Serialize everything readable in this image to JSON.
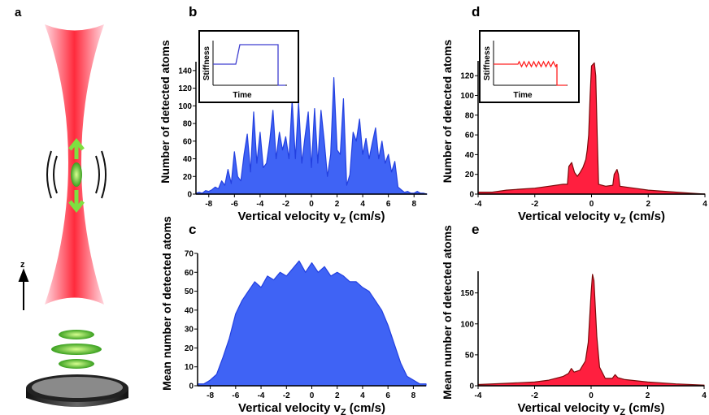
{
  "panel_labels": {
    "a": "a",
    "b": "b",
    "c": "c",
    "d": "d",
    "e": "e"
  },
  "illustration": {
    "axis_label": "z",
    "colors": {
      "beam": "#ff3040",
      "atom": "#7ee040",
      "arrow": "#7ee040",
      "dish": "#333333"
    }
  },
  "chart_data": [
    {
      "id": "b",
      "type": "area",
      "color": "#3f63f5",
      "edge": "#2340e0",
      "xlabel": "Vertical velocity v",
      "xlabel_sub": "Z",
      "xlabel_unit": " (cm/s)",
      "ylabel": "Number of detected atoms",
      "xlim": [
        -9,
        9
      ],
      "ylim": [
        0,
        150
      ],
      "xticks": [
        -8,
        -6,
        -4,
        -2,
        0,
        2,
        4,
        6,
        8
      ],
      "yticks": [
        0,
        20,
        40,
        60,
        80,
        100,
        120,
        140
      ],
      "x_start": -9,
      "x_step": 0.25,
      "values": [
        1,
        2,
        1,
        4,
        3,
        5,
        8,
        6,
        15,
        10,
        28,
        12,
        48,
        20,
        15,
        45,
        68,
        25,
        93,
        35,
        70,
        30,
        35,
        60,
        95,
        40,
        70,
        50,
        65,
        40,
        106,
        40,
        104,
        35,
        65,
        93,
        30,
        97,
        35,
        95,
        60,
        20,
        45,
        132,
        50,
        45,
        108,
        10,
        22,
        70,
        60,
        85,
        45,
        63,
        40,
        58,
        75,
        40,
        60,
        35,
        45,
        25,
        37,
        8,
        5,
        2,
        3,
        1,
        1,
        3,
        1,
        1,
        0
      ],
      "inset": {
        "ylabel": "Stiffness",
        "xlabel": "Time",
        "shape": "step-up-then-off",
        "color": "#3f3fd0"
      }
    },
    {
      "id": "c",
      "type": "area",
      "color": "#3f63f5",
      "edge": "#2340e0",
      "xlabel": "Vertical velocity v",
      "xlabel_sub": "Z",
      "xlabel_unit": " (cm/s)",
      "ylabel": "Mean number of detected atoms",
      "xlim": [
        -9,
        9
      ],
      "ylim": [
        0,
        70
      ],
      "xticks": [
        -8,
        -6,
        -4,
        -2,
        0,
        2,
        4,
        6,
        8
      ],
      "yticks": [
        0,
        10,
        20,
        30,
        40,
        50,
        60,
        70
      ],
      "x_start": -9,
      "x_step": 0.5,
      "values": [
        1,
        1,
        3,
        6,
        15,
        25,
        38,
        45,
        50,
        55,
        52,
        58,
        56,
        60,
        58,
        62,
        66,
        60,
        65,
        60,
        63,
        58,
        60,
        58,
        55,
        55,
        52,
        50,
        45,
        40,
        32,
        22,
        12,
        5,
        3,
        1,
        1
      ]
    },
    {
      "id": "d",
      "type": "area",
      "color": "#ff1f3f",
      "edge": "#7a0a0a",
      "xlabel": "Vertical velocity v",
      "xlabel_sub": "Z",
      "xlabel_unit": " (cm/s)",
      "ylabel": "Number of detected atoms",
      "xlim": [
        -4,
        4
      ],
      "ylim": [
        0,
        135
      ],
      "xticks": [
        -4,
        -2,
        0,
        2,
        4
      ],
      "yticks": [
        0,
        20,
        40,
        60,
        80,
        100,
        120
      ],
      "points": [
        [
          -4,
          2
        ],
        [
          -3.5,
          2
        ],
        [
          -3,
          4
        ],
        [
          -2.5,
          5
        ],
        [
          -2,
          6
        ],
        [
          -1.5,
          8
        ],
        [
          -1,
          10
        ],
        [
          -0.85,
          10
        ],
        [
          -0.8,
          28
        ],
        [
          -0.7,
          32
        ],
        [
          -0.6,
          22
        ],
        [
          -0.5,
          18
        ],
        [
          -0.4,
          22
        ],
        [
          -0.3,
          27
        ],
        [
          -0.2,
          35
        ],
        [
          -0.15,
          45
        ],
        [
          -0.1,
          60
        ],
        [
          -0.05,
          100
        ],
        [
          0,
          130
        ],
        [
          0.1,
          133
        ],
        [
          0.15,
          120
        ],
        [
          0.2,
          60
        ],
        [
          0.25,
          10
        ],
        [
          0.5,
          8
        ],
        [
          0.75,
          9
        ],
        [
          0.8,
          20
        ],
        [
          0.9,
          25
        ],
        [
          0.95,
          20
        ],
        [
          1,
          8
        ],
        [
          1.5,
          6
        ],
        [
          2,
          4
        ],
        [
          2.5,
          3
        ],
        [
          3,
          2
        ],
        [
          3.5,
          1
        ],
        [
          4,
          0
        ]
      ],
      "inset": {
        "ylabel": "Stiffness",
        "xlabel": "Time",
        "shape": "modulated-then-off",
        "color": "#ff2020"
      }
    },
    {
      "id": "e",
      "type": "area",
      "color": "#ff1f3f",
      "edge": "#7a0a0a",
      "xlabel": "Vertical velocity v",
      "xlabel_sub": "Z",
      "xlabel_unit": " (cm/s)",
      "ylabel": "Mean number of detected atoms",
      "xlim": [
        -4,
        4
      ],
      "ylim": [
        0,
        185
      ],
      "xticks": [
        -4,
        -2,
        0,
        2,
        4
      ],
      "yticks": [
        0,
        50,
        100,
        150
      ],
      "points": [
        [
          -4,
          2
        ],
        [
          -3,
          4
        ],
        [
          -2,
          6
        ],
        [
          -1.5,
          9
        ],
        [
          -1,
          15
        ],
        [
          -0.8,
          20
        ],
        [
          -0.7,
          28
        ],
        [
          -0.6,
          22
        ],
        [
          -0.4,
          25
        ],
        [
          -0.2,
          40
        ],
        [
          -0.1,
          70
        ],
        [
          0,
          150
        ],
        [
          0.05,
          180
        ],
        [
          0.1,
          170
        ],
        [
          0.2,
          80
        ],
        [
          0.3,
          30
        ],
        [
          0.5,
          12
        ],
        [
          0.75,
          12
        ],
        [
          0.85,
          18
        ],
        [
          0.95,
          13
        ],
        [
          1.2,
          10
        ],
        [
          2,
          6
        ],
        [
          3,
          3
        ],
        [
          4,
          1
        ]
      ]
    }
  ]
}
